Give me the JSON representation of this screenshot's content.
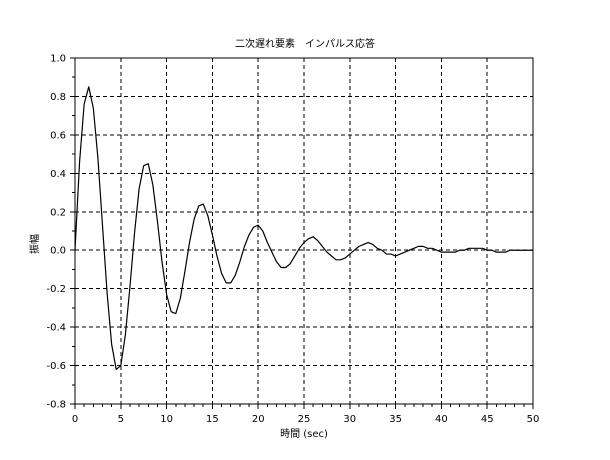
{
  "chart_data": {
    "type": "line",
    "title": "二次遅れ要素　インパルス応答",
    "xlabel": "時間 (sec)",
    "ylabel": "振幅",
    "xlim": [
      0,
      50
    ],
    "ylim": [
      -0.8,
      1.0
    ],
    "x_ticks": [
      0,
      5,
      10,
      15,
      20,
      25,
      30,
      35,
      40,
      45,
      50
    ],
    "x_tick_labels": [
      "0",
      "5",
      "10",
      "15",
      "20",
      "25",
      "30",
      "35",
      "40",
      "45",
      "50"
    ],
    "y_ticks": [
      -0.8,
      -0.6,
      -0.4,
      -0.2,
      0.0,
      0.2,
      0.4,
      0.6,
      0.8,
      1.0
    ],
    "y_tick_labels": [
      "-0.8",
      "-0.6",
      "-0.4",
      "-0.2",
      "0.0",
      "0.2",
      "0.4",
      "0.6",
      "0.8",
      "1.0"
    ],
    "grid": true,
    "legend": "none",
    "colors": {
      "line": "#000000",
      "grid": "#000000",
      "axis": "#000000"
    },
    "series": [
      {
        "x": [
          0,
          0.5,
          1.0,
          1.5,
          2.0,
          2.5,
          3.0,
          3.5,
          4.0,
          4.5,
          5.0,
          5.5,
          6.0,
          6.5,
          7.0,
          7.5,
          8.0,
          8.5,
          9.0,
          9.5,
          10.0,
          10.5,
          11.0,
          11.5,
          12.0,
          12.5,
          13.0,
          13.5,
          14.0,
          14.5,
          15.0,
          15.5,
          16.0,
          16.5,
          17.0,
          17.5,
          18.0,
          18.5,
          19.0,
          19.5,
          20.0,
          20.5,
          21.0,
          21.5,
          22.0,
          22.5,
          23.0,
          23.5,
          24.0,
          24.5,
          25.0,
          25.5,
          26.0,
          26.5,
          27.0,
          27.5,
          28.0,
          28.5,
          29.0,
          29.5,
          30.0,
          30.5,
          31.0,
          31.5,
          32.0,
          32.5,
          33.0,
          33.5,
          34.0,
          34.5,
          35.0,
          35.5,
          36.0,
          36.5,
          37.0,
          37.5,
          38.0,
          38.5,
          39.0,
          39.5,
          40.0,
          40.5,
          41.0,
          41.5,
          42.0,
          42.5,
          43.0,
          43.5,
          44.0,
          44.5,
          45.0,
          45.5,
          46.0,
          46.5,
          47.0,
          47.5,
          48.0,
          48.5,
          49.0,
          49.5,
          50.0
        ],
        "y": [
          0.0,
          0.46,
          0.76,
          0.85,
          0.74,
          0.48,
          0.13,
          -0.22,
          -0.49,
          -0.62,
          -0.6,
          -0.44,
          -0.19,
          0.09,
          0.32,
          0.44,
          0.45,
          0.34,
          0.15,
          -0.06,
          -0.23,
          -0.32,
          -0.33,
          -0.25,
          -0.11,
          0.04,
          0.16,
          0.23,
          0.24,
          0.18,
          0.08,
          -0.03,
          -0.12,
          -0.17,
          -0.17,
          -0.13,
          -0.06,
          0.02,
          0.08,
          0.12,
          0.13,
          0.1,
          0.04,
          -0.01,
          -0.06,
          -0.09,
          -0.09,
          -0.07,
          -0.03,
          0.01,
          0.04,
          0.06,
          0.07,
          0.05,
          0.02,
          -0.01,
          -0.03,
          -0.05,
          -0.05,
          -0.04,
          -0.02,
          0.0,
          0.02,
          0.03,
          0.04,
          0.03,
          0.01,
          -0.0,
          -0.02,
          -0.02,
          -0.03,
          -0.02,
          -0.01,
          0.0,
          0.01,
          0.02,
          0.02,
          0.01,
          0.01,
          -0.0,
          -0.01,
          -0.01,
          -0.01,
          -0.01,
          -0.0,
          0.0,
          0.01,
          0.01,
          0.01,
          0.01,
          0.0,
          -0.0,
          -0.01,
          -0.01,
          -0.01,
          -0.0,
          -0.0,
          0.0,
          0.0,
          0.0,
          0.0
        ]
      }
    ]
  }
}
